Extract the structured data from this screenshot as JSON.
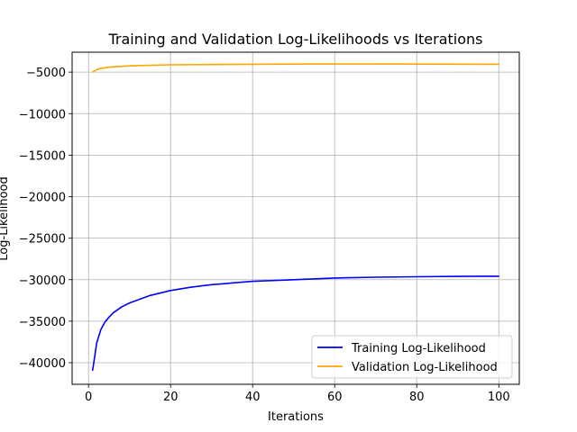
{
  "chart_data": {
    "type": "line",
    "title": "Training and Validation Log-Likelihoods vs Iterations",
    "xlabel": "Iterations",
    "ylabel": "Log-Likelihood",
    "xlim": [
      -4,
      105
    ],
    "ylim": [
      -42600,
      -2600
    ],
    "xticks": [
      0,
      20,
      40,
      60,
      80,
      100
    ],
    "yticks": [
      -5000,
      -10000,
      -15000,
      -20000,
      -25000,
      -30000,
      -35000,
      -40000
    ],
    "grid": true,
    "legend_position": "lower-right",
    "series": [
      {
        "name": "Training Log-Likelihood",
        "color": "#0000ff",
        "x": [
          1,
          2,
          3,
          4,
          5,
          6,
          8,
          10,
          15,
          20,
          25,
          30,
          40,
          50,
          60,
          70,
          80,
          90,
          100
        ],
        "y": [
          -40900,
          -37600,
          -36000,
          -35100,
          -34500,
          -34000,
          -33300,
          -32800,
          -31900,
          -31300,
          -30900,
          -30600,
          -30200,
          -30000,
          -29800,
          -29700,
          -29650,
          -29600,
          -29580
        ]
      },
      {
        "name": "Validation Log-Likelihood",
        "color": "#ffa500",
        "x": [
          1,
          2,
          3,
          5,
          8,
          10,
          15,
          20,
          30,
          40,
          50,
          60,
          70,
          80,
          90,
          100
        ],
        "y": [
          -5000,
          -4700,
          -4550,
          -4400,
          -4300,
          -4250,
          -4180,
          -4120,
          -4080,
          -4050,
          -4030,
          -4020,
          -4020,
          -4030,
          -4040,
          -4050
        ]
      }
    ]
  }
}
